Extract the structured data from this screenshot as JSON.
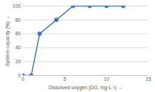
{
  "chart_data": {
    "type": "line",
    "x_label": "Dissolved oxygen (DO, mg·L⁻¹)",
    "y_label": "System capacity (%)",
    "x": [
      0,
      1,
      2,
      4,
      6,
      8,
      10,
      12
    ],
    "values": [
      0,
      0,
      60,
      80,
      100,
      100,
      100,
      100
    ],
    "color": "#4472c4",
    "marker": "circle",
    "line_style": "solid",
    "xlim": [
      0,
      15
    ],
    "xticks": [
      0,
      5,
      10,
      15
    ],
    "ylim": [
      0,
      100
    ],
    "yticks": [
      0,
      20,
      40,
      60,
      80,
      100
    ],
    "grid": true
  }
}
